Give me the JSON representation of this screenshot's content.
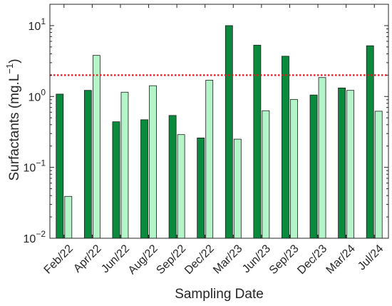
{
  "chart_data": {
    "type": "bar",
    "title": "",
    "xlabel": "Sampling Date",
    "ylabel": "Surfactants (mg.L",
    "ylabel_superscript": "−1",
    "ylabel_suffix": ")",
    "yscale": "log",
    "ylim": [
      0.01,
      20
    ],
    "yticks": [
      {
        "value": 0.01,
        "base": "10",
        "exp": "−2"
      },
      {
        "value": 0.1,
        "base": "10",
        "exp": "−1"
      },
      {
        "value": 1,
        "base": "10",
        "exp": "0"
      },
      {
        "value": 10,
        "base": "10",
        "exp": "1"
      }
    ],
    "categories": [
      "Feb/22",
      "Apr/22",
      "Jun/22",
      "Aug/22",
      "Sep/22",
      "Dec/22",
      "Mar/23",
      "Jun/23",
      "Sep/23",
      "Dec/23",
      "Mar/24",
      "Jul/24"
    ],
    "series": [
      {
        "color": "#0a8a3c",
        "values": [
          1.08,
          1.22,
          0.44,
          0.47,
          0.54,
          0.26,
          10.0,
          5.3,
          3.7,
          1.05,
          1.32,
          5.2
        ]
      },
      {
        "color": "#b3f5c8",
        "values": [
          0.039,
          3.8,
          1.15,
          1.42,
          0.29,
          1.7,
          0.25,
          0.63,
          0.91,
          1.85,
          1.22,
          0.62
        ]
      }
    ],
    "reference_line": {
      "value": 2.0,
      "color": "#e8151b",
      "style": "dotted"
    },
    "grid": false,
    "legend": "none"
  }
}
